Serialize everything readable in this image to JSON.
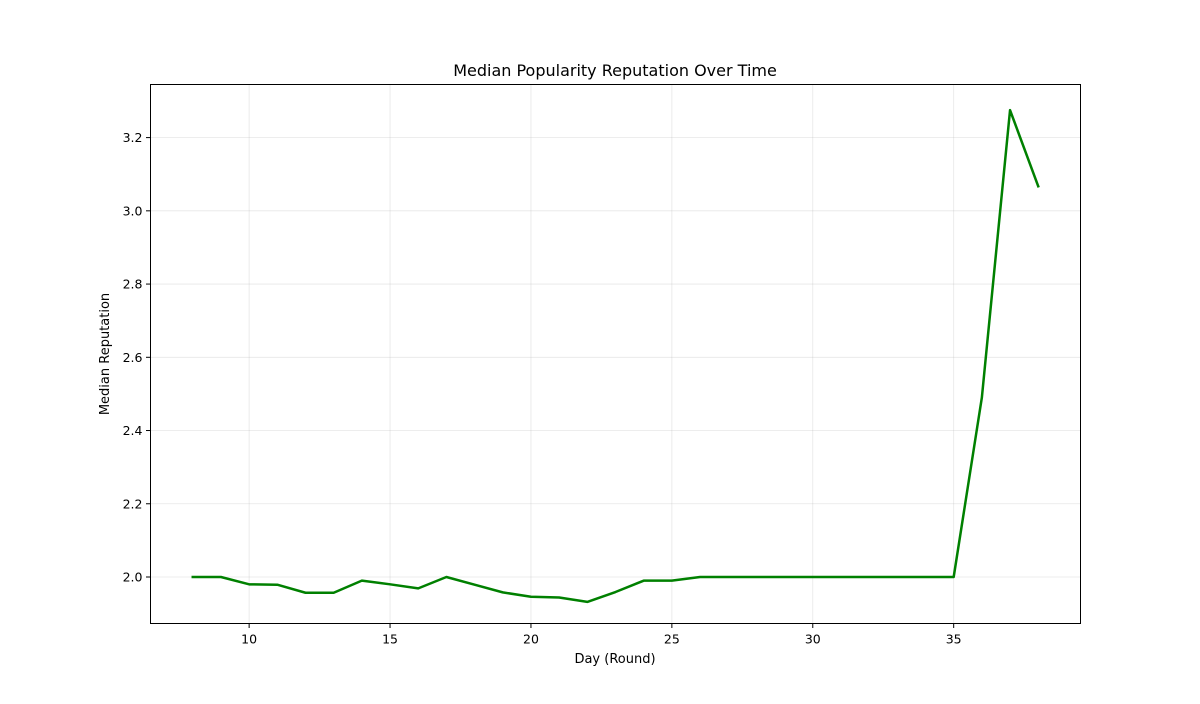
{
  "chart_data": {
    "type": "line",
    "title": "Median Popularity Reputation Over Time",
    "xlabel": "Day (Round)",
    "ylabel": "Median Reputation",
    "xlim": [
      6.5,
      39.5
    ],
    "ylim": [
      1.873,
      3.345
    ],
    "xticks": [
      10,
      15,
      20,
      25,
      30,
      35
    ],
    "yticks": [
      2.0,
      2.2,
      2.4,
      2.6,
      2.8,
      3.0,
      3.2
    ],
    "ytick_labels": [
      "2.0",
      "2.2",
      "2.4",
      "2.6",
      "2.8",
      "3.0",
      "3.2"
    ],
    "grid": true,
    "legend": "none",
    "series": [
      {
        "color": "#008000",
        "x": [
          8,
          9,
          10,
          11,
          12,
          13,
          14,
          15,
          16,
          17,
          18,
          19,
          20,
          21,
          22,
          23,
          24,
          25,
          26,
          27,
          28,
          29,
          30,
          31,
          32,
          33,
          34,
          35,
          36,
          37,
          38
        ],
        "y": [
          2.0,
          2.0,
          1.98,
          1.979,
          1.957,
          1.957,
          1.99,
          1.98,
          1.969,
          2.0,
          1.979,
          1.958,
          1.946,
          1.944,
          1.932,
          1.959,
          1.99,
          1.99,
          2.0,
          2.0,
          2.0,
          2.0,
          2.0,
          2.0,
          2.0,
          2.0,
          2.0,
          2.0,
          2.49,
          3.275,
          3.067
        ]
      }
    ]
  }
}
